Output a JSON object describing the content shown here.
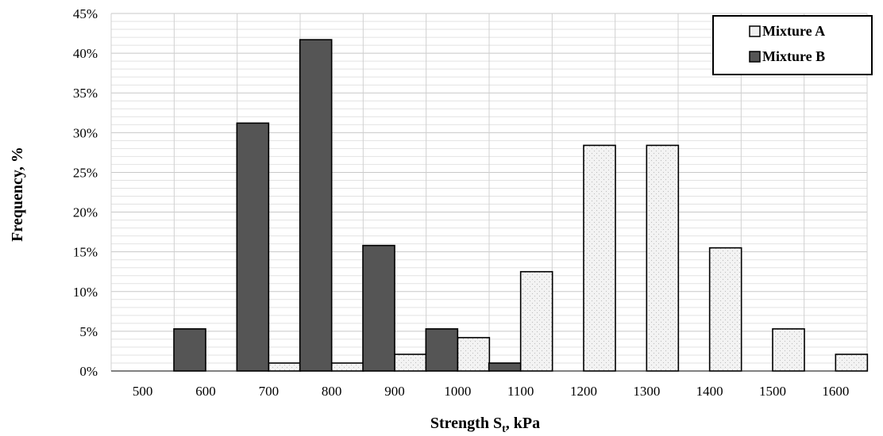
{
  "chart_data": {
    "type": "bar",
    "title": "",
    "xlabel_main": "Strength S",
    "xlabel_sub": "t",
    "xlabel_tail": ", kPa",
    "ylabel": "Frequency, %",
    "categories": [
      "500",
      "600",
      "700",
      "800",
      "900",
      "1000",
      "1100",
      "1200",
      "1300",
      "1400",
      "1500",
      "1600"
    ],
    "yticks": [
      "0%",
      "5%",
      "10%",
      "15%",
      "20%",
      "25%",
      "30%",
      "35%",
      "40%",
      "45%"
    ],
    "ylim": [
      0,
      45
    ],
    "series": [
      {
        "name": "Mixture A",
        "color": "#efefef",
        "values": [
          0,
          0,
          1.0,
          1.0,
          2.1,
          4.2,
          12.5,
          28.4,
          28.4,
          15.5,
          5.3,
          2.1
        ]
      },
      {
        "name": "Mixture B",
        "color": "#555555",
        "values": [
          0,
          5.3,
          31.2,
          41.7,
          15.8,
          5.3,
          1.0,
          0,
          0,
          0,
          0,
          0
        ]
      }
    ],
    "grid": true,
    "legend_position": "top-right"
  }
}
